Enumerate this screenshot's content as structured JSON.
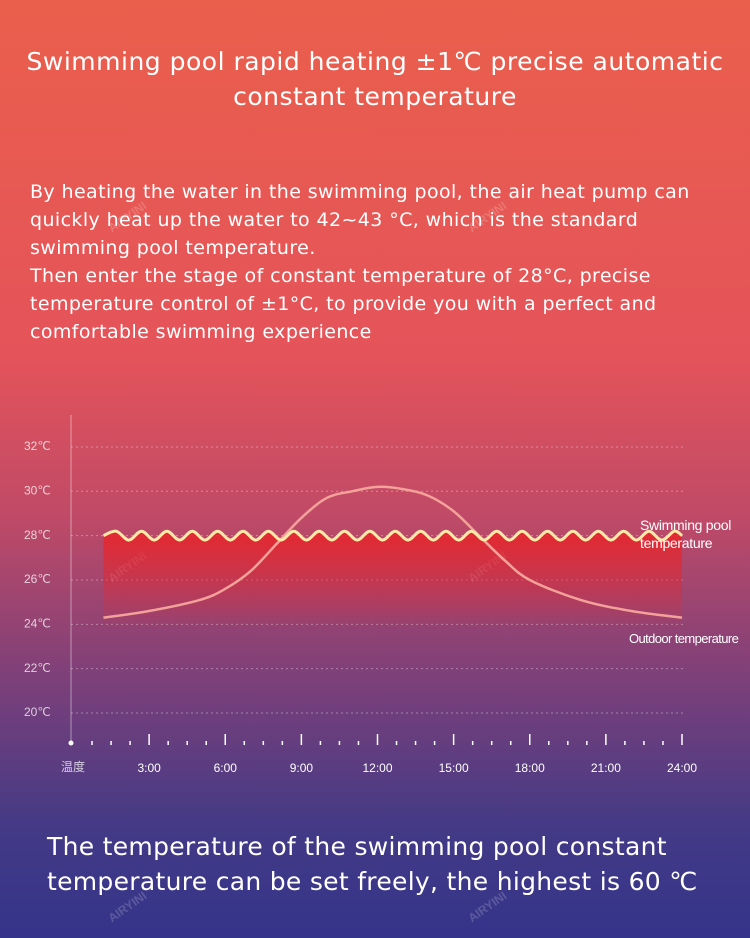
{
  "title": "Swimming pool rapid heating ±1℃ precise automatic constant temperature",
  "description": [
    "By heating the water in the swimming pool, the air heat pump can quickly heat up the water to 42~43 °C, which is the standard swimming pool temperature.",
    "Then enter the stage of constant temperature of 28°C, precise temperature control of ±1°C, to provide you with a perfect and comfortable swimming experience"
  ],
  "footer": "The temperature of the swimming pool constant temperature can be set freely, the highest is 60 ℃",
  "watermark": "AIRYINI",
  "chart_data": {
    "type": "line",
    "y_label": "温度",
    "xlim": [
      0,
      24
    ],
    "xticks": [
      {
        "value": 3,
        "label": "3:00"
      },
      {
        "value": 6,
        "label": "6:00"
      },
      {
        "value": 9,
        "label": "9:00"
      },
      {
        "value": 12,
        "label": "12:00"
      },
      {
        "value": 15,
        "label": "15:00"
      },
      {
        "value": 18,
        "label": "18:00"
      },
      {
        "value": 21,
        "label": "21:00"
      },
      {
        "value": 24,
        "label": "24:00"
      }
    ],
    "ylim": [
      19,
      33.5
    ],
    "yticks": [
      {
        "value": 20,
        "label": "20℃"
      },
      {
        "value": 22,
        "label": "22℃"
      },
      {
        "value": 24,
        "label": "24℃"
      },
      {
        "value": 26,
        "label": "26℃"
      },
      {
        "value": 28,
        "label": "28℃"
      },
      {
        "value": 30,
        "label": "30℃"
      },
      {
        "value": 32,
        "label": "32℃"
      }
    ],
    "grid": true,
    "series": [
      {
        "name": "Swimming pool temperature",
        "color": "#fbe9a8",
        "x": [
          1.2,
          1.7,
          2.2,
          2.7,
          3.2,
          3.7,
          4.2,
          4.7,
          5.2,
          5.7,
          6.2,
          6.7,
          7.2,
          7.7,
          8.2,
          8.7,
          9.2,
          9.7,
          10.2,
          10.7,
          11.2,
          11.7,
          12.2,
          12.7,
          13.2,
          13.7,
          14.2,
          14.7,
          15.2,
          15.7,
          16.2,
          16.7,
          17.2,
          17.7,
          18.2,
          18.7,
          19.2,
          19.7,
          20.2,
          20.7,
          21.2,
          21.7,
          22.2,
          22.7,
          23.2,
          23.7,
          24
        ],
        "values": [
          28,
          28.2,
          27.8,
          28.2,
          27.8,
          28.2,
          27.8,
          28.2,
          27.8,
          28.2,
          27.8,
          28.2,
          27.8,
          28.2,
          27.8,
          28.2,
          27.8,
          28.2,
          27.8,
          28.2,
          27.8,
          28.2,
          27.8,
          28.2,
          27.8,
          28.2,
          27.8,
          28.2,
          27.8,
          28.2,
          27.8,
          28.2,
          27.8,
          28.2,
          27.8,
          28.2,
          27.8,
          28.2,
          27.8,
          28.2,
          27.8,
          28.2,
          27.8,
          28.2,
          27.8,
          28.2,
          28
        ]
      },
      {
        "name": "Outdoor temperature",
        "color": "#f3a29a",
        "x": [
          1.2,
          3,
          5,
          6,
          7,
          8,
          9,
          10,
          11,
          12,
          13,
          14,
          15,
          16,
          17,
          18,
          20,
          22,
          24
        ],
        "values": [
          24.3,
          24.6,
          25.1,
          25.6,
          26.4,
          27.6,
          28.8,
          29.7,
          30.0,
          30.2,
          30.1,
          29.8,
          29.1,
          28.0,
          26.9,
          26.0,
          25.1,
          24.6,
          24.3
        ]
      }
    ]
  }
}
